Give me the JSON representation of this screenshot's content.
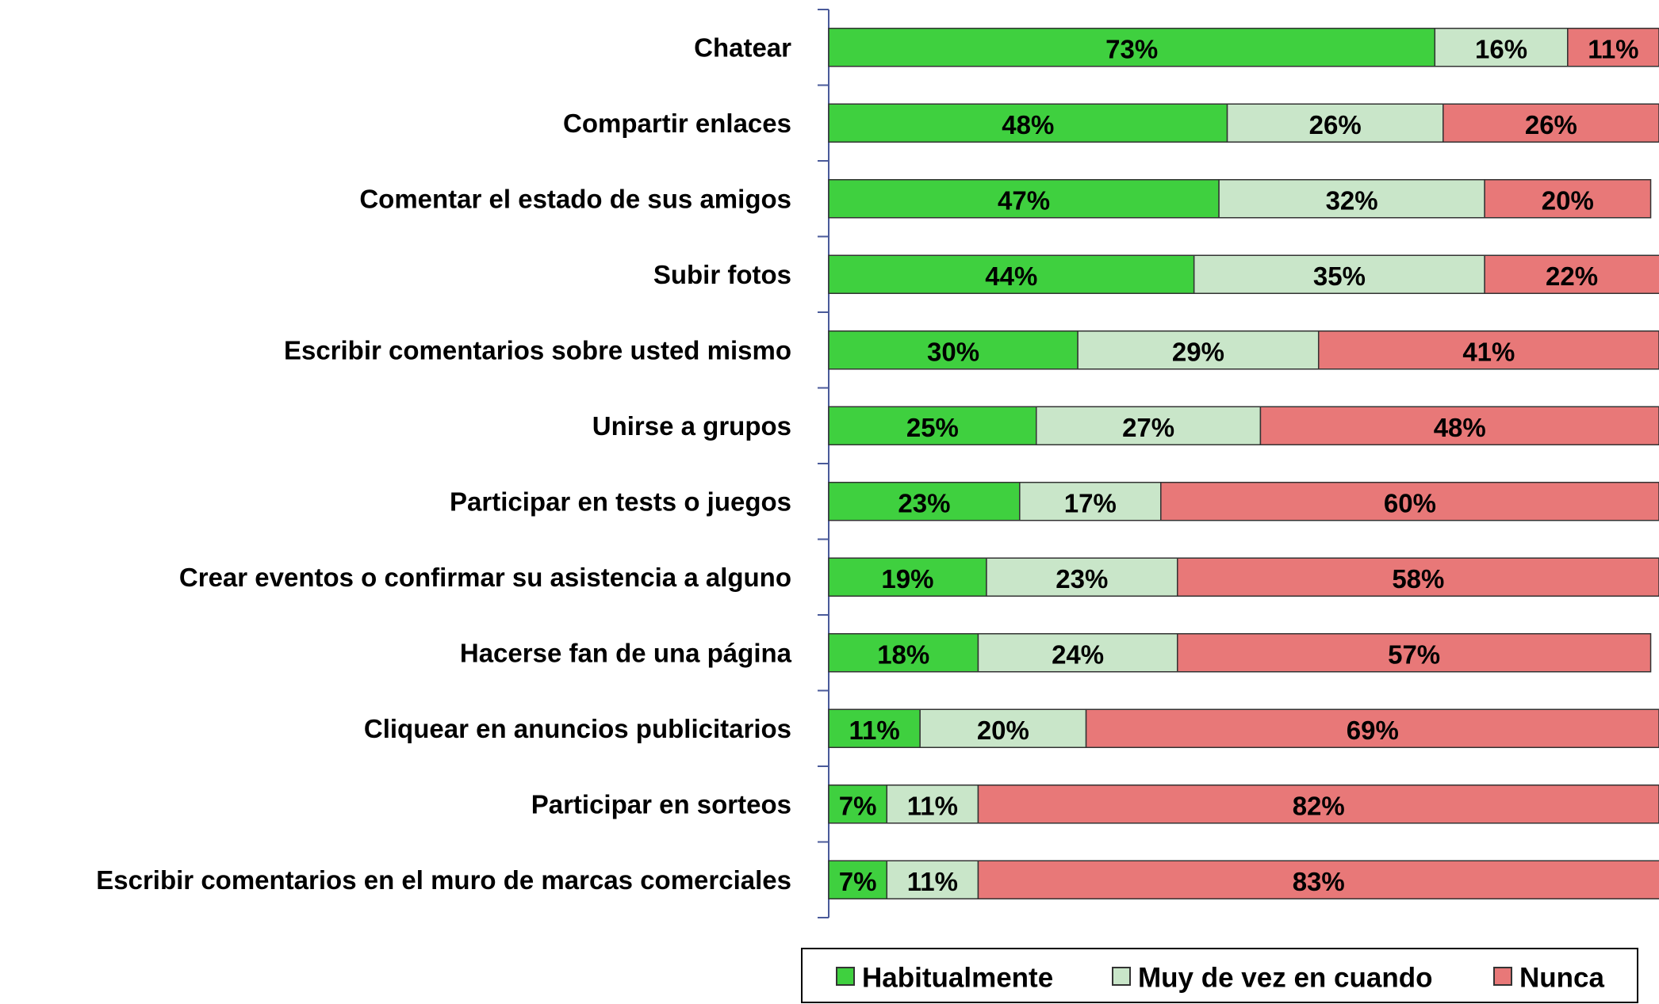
{
  "chart_data": {
    "type": "stacked-barh",
    "categories": [
      "Chatear",
      "Compartir enlaces",
      "Comentar el estado de sus amigos",
      "Subir fotos",
      "Escribir comentarios sobre usted mismo",
      "Unirse a grupos",
      "Participar en tests o juegos",
      "Crear eventos o confirmar  su asistencia a alguno",
      "Hacerse fan de una página",
      "Cliquear en anuncios publicitarios",
      "Participar en sorteos",
      "Escribir comentarios en el muro de marcas comerciales"
    ],
    "series": [
      {
        "name": "Habitualmente",
        "color": "#3fd03f",
        "values": [
          73,
          48,
          47,
          44,
          30,
          25,
          23,
          19,
          18,
          11,
          7,
          7
        ],
        "value_labels": [
          "73%",
          "48%",
          "47%",
          "44%",
          "30%",
          "25%",
          "23%",
          "19%",
          "18%",
          "11%",
          "7%",
          "7%"
        ]
      },
      {
        "name": "Muy de vez en cuando",
        "color": "#c9e6c9",
        "values": [
          16,
          26,
          32,
          35,
          29,
          27,
          17,
          23,
          24,
          20,
          11,
          11
        ],
        "value_labels": [
          "16%",
          "26%",
          "32%",
          "35%",
          "29%",
          "27%",
          "17%",
          "23%",
          "24%",
          "20%",
          "11%",
          "11%"
        ]
      },
      {
        "name": "Nunca",
        "color": "#e87878",
        "values": [
          11,
          26,
          20,
          22,
          41,
          48,
          60,
          58,
          57,
          69,
          82,
          83
        ],
        "value_labels": [
          "11%",
          "26%",
          "20%",
          "22%",
          "41%",
          "48%",
          "60%",
          "58%",
          "57%",
          "69%",
          "82%",
          "83%"
        ]
      }
    ],
    "xlim": [
      0,
      100
    ],
    "legend": "bottom"
  }
}
